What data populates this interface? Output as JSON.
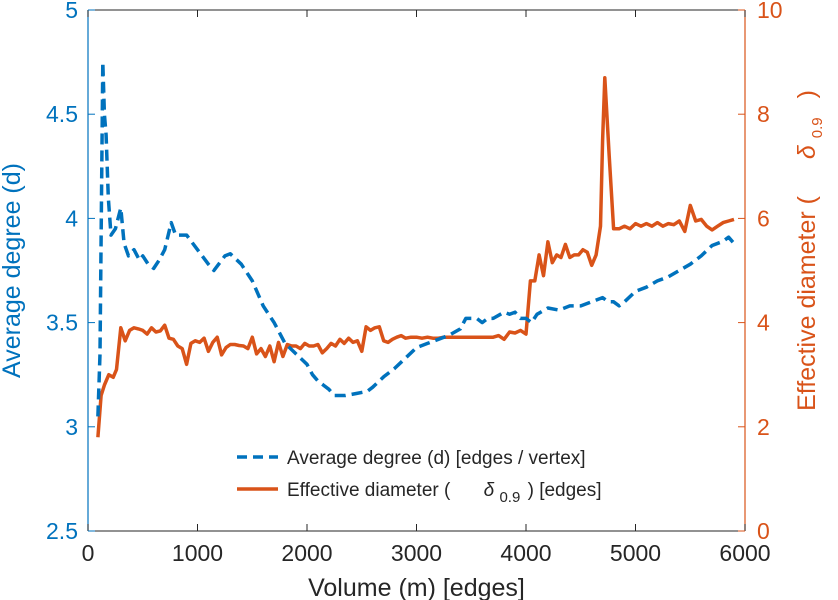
{
  "colors": {
    "left_axis": "#0072BD",
    "right_axis": "#D95319",
    "series_left": "#0072BD",
    "series_right": "#D95319",
    "frame": "#262626",
    "legend_text": "#262626"
  },
  "chart_data": {
    "type": "line",
    "xlabel": "Volume (m) [edges]",
    "xlim": [
      0,
      6000
    ],
    "xticks": [
      0,
      1000,
      2000,
      3000,
      4000,
      5000,
      6000
    ],
    "ylabel_left": "Average degree (d)",
    "ylim_left": [
      2.5,
      5
    ],
    "yticks_left": [
      "2.5",
      "3",
      "3.5",
      "4",
      "4.5",
      "5"
    ],
    "ylabel_right": {
      "prefix": "Effective diameter (",
      "symbol": "δ",
      "subscript": "0.9",
      "suffix": ")"
    },
    "ylim_right": [
      0,
      10
    ],
    "yticks_right": [
      "0",
      "2",
      "4",
      "6",
      "8",
      "10"
    ],
    "legend": {
      "position": "bottom-center",
      "entries": [
        {
          "label": "Average degree (d) [edges / vertex]",
          "style": "dashed",
          "color": "#0072BD"
        },
        {
          "label_prefix": "Effective diameter (",
          "symbol": "δ",
          "subscript": "0.9",
          "label_suffix": ") [edges]",
          "style": "solid",
          "color": "#D95319"
        }
      ]
    },
    "series": [
      {
        "name": "Average degree (d) [edges / vertex]",
        "axis": "left",
        "style": "dashed",
        "x": [
          90,
          110,
          125,
          135,
          150,
          165,
          185,
          210,
          250,
          300,
          330,
          370,
          420,
          470,
          500,
          550,
          600,
          650,
          700,
          760,
          800,
          900,
          1000,
          1100,
          1150,
          1250,
          1300,
          1400,
          1500,
          1600,
          1700,
          1800,
          1900,
          2000,
          2050,
          2100,
          2150,
          2200,
          2250,
          2350,
          2450,
          2550,
          2600,
          2700,
          2800,
          2900,
          3000,
          3100,
          3200,
          3300,
          3400,
          3450,
          3550,
          3600,
          3650,
          3700,
          3800,
          3850,
          3900,
          3950,
          4000,
          4050,
          4100,
          4200,
          4300,
          4400,
          4500,
          4600,
          4700,
          4750,
          4800,
          4850,
          4900,
          5000,
          5100,
          5200,
          5300,
          5400,
          5500,
          5550,
          5600,
          5700,
          5800,
          5850,
          5900
        ],
        "values": [
          3.05,
          3.35,
          4.2,
          4.75,
          4.5,
          4.4,
          4.1,
          3.92,
          3.95,
          4.05,
          3.88,
          3.82,
          3.85,
          3.8,
          3.82,
          3.78,
          3.76,
          3.8,
          3.85,
          3.98,
          3.92,
          3.92,
          3.85,
          3.78,
          3.75,
          3.82,
          3.83,
          3.78,
          3.7,
          3.58,
          3.5,
          3.4,
          3.35,
          3.3,
          3.25,
          3.22,
          3.2,
          3.18,
          3.15,
          3.15,
          3.16,
          3.17,
          3.19,
          3.24,
          3.28,
          3.33,
          3.38,
          3.4,
          3.42,
          3.44,
          3.47,
          3.52,
          3.52,
          3.5,
          3.52,
          3.52,
          3.55,
          3.54,
          3.55,
          3.52,
          3.52,
          3.5,
          3.54,
          3.57,
          3.56,
          3.58,
          3.58,
          3.6,
          3.62,
          3.6,
          3.6,
          3.58,
          3.6,
          3.65,
          3.67,
          3.7,
          3.72,
          3.75,
          3.78,
          3.8,
          3.82,
          3.87,
          3.89,
          3.91,
          3.88
        ]
      },
      {
        "name": "Effective diameter (δ0.9) [edges]",
        "axis": "right",
        "style": "solid",
        "x": [
          90,
          120,
          150,
          190,
          230,
          260,
          300,
          340,
          380,
          420,
          460,
          500,
          540,
          580,
          620,
          660,
          700,
          740,
          780,
          820,
          860,
          900,
          940,
          980,
          1020,
          1060,
          1100,
          1140,
          1180,
          1220,
          1260,
          1300,
          1340,
          1380,
          1420,
          1460,
          1500,
          1540,
          1580,
          1620,
          1660,
          1700,
          1740,
          1780,
          1820,
          1860,
          1900,
          1940,
          1980,
          2020,
          2060,
          2100,
          2140,
          2180,
          2220,
          2260,
          2300,
          2340,
          2380,
          2420,
          2460,
          2500,
          2540,
          2580,
          2620,
          2660,
          2700,
          2740,
          2780,
          2820,
          2860,
          2900,
          2950,
          3000,
          3050,
          3100,
          3150,
          3200,
          3250,
          3300,
          3350,
          3400,
          3450,
          3500,
          3550,
          3600,
          3650,
          3700,
          3750,
          3800,
          3850,
          3900,
          3950,
          4000,
          4040,
          4080,
          4120,
          4160,
          4200,
          4240,
          4280,
          4320,
          4360,
          4400,
          4440,
          4480,
          4520,
          4560,
          4600,
          4640,
          4680,
          4700,
          4720,
          4760,
          4800,
          4850,
          4900,
          4950,
          5000,
          5050,
          5100,
          5150,
          5200,
          5250,
          5300,
          5350,
          5400,
          5450,
          5500,
          5550,
          5600,
          5650,
          5700,
          5750,
          5800,
          5850,
          5900
        ],
        "values": [
          1.8,
          2.6,
          2.8,
          3.0,
          2.95,
          3.1,
          3.9,
          3.65,
          3.85,
          3.9,
          3.88,
          3.85,
          3.78,
          3.9,
          3.82,
          3.84,
          3.95,
          3.7,
          3.68,
          3.55,
          3.5,
          3.2,
          3.6,
          3.65,
          3.62,
          3.7,
          3.45,
          3.62,
          3.72,
          3.38,
          3.52,
          3.58,
          3.58,
          3.56,
          3.55,
          3.5,
          3.72,
          3.4,
          3.5,
          3.35,
          3.55,
          3.25,
          3.62,
          3.35,
          3.58,
          3.55,
          3.55,
          3.5,
          3.6,
          3.55,
          3.55,
          3.58,
          3.42,
          3.5,
          3.6,
          3.55,
          3.68,
          3.6,
          3.7,
          3.62,
          3.65,
          3.45,
          3.92,
          3.85,
          3.9,
          3.92,
          3.65,
          3.62,
          3.68,
          3.72,
          3.75,
          3.7,
          3.72,
          3.72,
          3.7,
          3.72,
          3.7,
          3.7,
          3.72,
          3.72,
          3.72,
          3.72,
          3.72,
          3.72,
          3.72,
          3.72,
          3.72,
          3.72,
          3.75,
          3.68,
          3.82,
          3.8,
          3.85,
          3.78,
          4.8,
          4.8,
          5.3,
          4.9,
          5.55,
          5.15,
          5.3,
          5.25,
          5.5,
          5.25,
          5.3,
          5.3,
          5.4,
          5.35,
          5.1,
          5.3,
          5.85,
          7.5,
          8.7,
          7.2,
          5.8,
          5.8,
          5.85,
          5.8,
          5.9,
          5.85,
          5.9,
          5.85,
          5.92,
          5.85,
          5.9,
          5.88,
          5.95,
          5.75,
          6.25,
          5.95,
          5.98,
          5.85,
          5.78,
          5.85,
          5.92,
          5.95,
          5.98
        ]
      }
    ]
  }
}
